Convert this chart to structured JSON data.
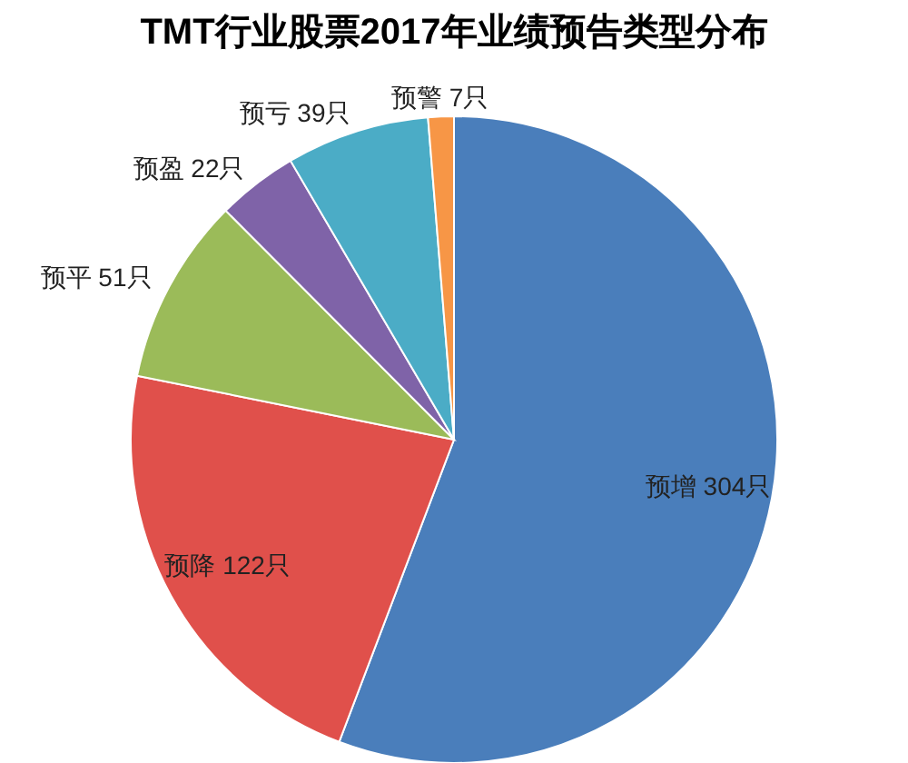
{
  "chart_data": {
    "type": "pie",
    "title": "TMT行业股票2017年业绩预告类型分布",
    "categories": [
      "预增",
      "预降",
      "预平",
      "预盈",
      "预亏",
      "预警"
    ],
    "values": [
      304,
      122,
      51,
      22,
      39,
      7
    ],
    "value_labels": [
      "304只",
      "122只",
      "51只",
      "22只",
      "39只",
      "7只"
    ],
    "colors": [
      "#4a7ebb",
      "#e0504b",
      "#9bbb59",
      "#7f63a8",
      "#4bacc6",
      "#f79646"
    ]
  }
}
